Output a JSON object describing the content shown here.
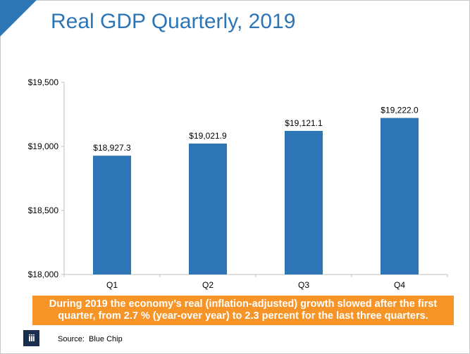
{
  "slide": {
    "title": "Real GDP Quarterly, 2019",
    "callout": "During 2019 the economy’s real (inflation-adjusted) growth slowed after the first quarter, from 2.7 % (year-over year) to 2.3 percent for the last three quarters.",
    "source": "Source:  Blue Chip",
    "logo_glyph": "iii",
    "logo_icon": "iii-logo-icon"
  },
  "colors": {
    "accent": "#2e75b6",
    "bar": "#2e75b6",
    "callout_bg": "#f79428",
    "logo_bg": "#1a2f4f"
  },
  "chart_data": {
    "type": "bar",
    "title": "Real GDP Quarterly, 2019",
    "xlabel": "",
    "ylabel": "",
    "categories": [
      "Q1",
      "Q2",
      "Q3",
      "Q4"
    ],
    "values": [
      18927.3,
      19021.9,
      19121.1,
      19222.0
    ],
    "data_labels": [
      "$18,927.3",
      "$19,021.9",
      "$19,121.1",
      "$19,222.0"
    ],
    "ylim": [
      18000,
      19500
    ],
    "yticks": [
      18000,
      18500,
      19000,
      19500
    ],
    "ytick_labels": [
      "$18,000",
      "$18,500",
      "$19,000",
      "$19,500"
    ],
    "grid": false,
    "legend": "none"
  }
}
